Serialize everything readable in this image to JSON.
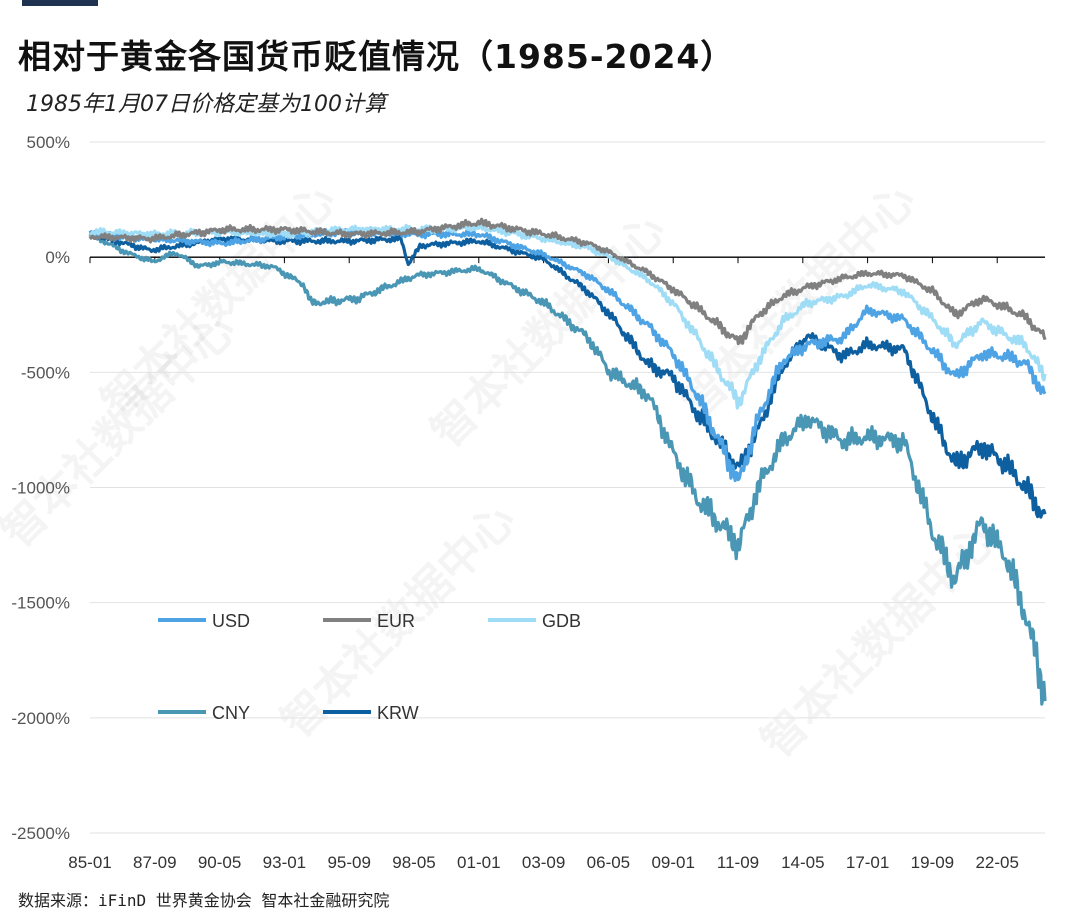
{
  "header": {
    "title": "相对于黄金各国货币贬值情况（1985-2024）",
    "subtitle": "1985年1月07日价格定基为100计算"
  },
  "source": "数据来源：iFinD 世界黄金协会 智本社金融研究院",
  "watermark": "智本社数据中心",
  "chart_data": {
    "type": "line",
    "title": "相对于黄金各国货币贬值情况（1985-2024）",
    "subtitle": "1985年1月07日价格定基为100计算",
    "ylabel": "",
    "xlabel": "",
    "y_unit": "%",
    "ylim": [
      -2500,
      500
    ],
    "yticks": [
      500,
      0,
      -500,
      -1000,
      -1500,
      -2000,
      -2500
    ],
    "ytick_labels": [
      "500%",
      "0%",
      "-500%",
      "-1000%",
      "-1500%",
      "-2000%",
      "-2500%"
    ],
    "xtick_labels": [
      "85-01",
      "87-09",
      "90-05",
      "93-01",
      "95-09",
      "98-05",
      "01-01",
      "03-09",
      "06-05",
      "09-01",
      "11-09",
      "14-05",
      "17-01",
      "19-09",
      "22-05"
    ],
    "x_range": [
      1985.0,
      2024.3
    ],
    "grid": true,
    "legend_position": "lower-left inside plot",
    "series": [
      {
        "name": "USD",
        "color": "#4ea3e5",
        "points": [
          [
            1985.0,
            100
          ],
          [
            1987.5,
            80
          ],
          [
            1990.5,
            60
          ],
          [
            1993.0,
            90
          ],
          [
            1995.7,
            110
          ],
          [
            1998.4,
            100
          ],
          [
            2001.0,
            100
          ],
          [
            2003.7,
            10
          ],
          [
            2005.5,
            -80
          ],
          [
            2006.4,
            -150
          ],
          [
            2008.0,
            -300
          ],
          [
            2009.0,
            -420
          ],
          [
            2010.0,
            -600
          ],
          [
            2011.7,
            -980
          ],
          [
            2012.5,
            -700
          ],
          [
            2013.5,
            -450
          ],
          [
            2014.5,
            -380
          ],
          [
            2016.0,
            -350
          ],
          [
            2017.0,
            -230
          ],
          [
            2018.5,
            -270
          ],
          [
            2019.7,
            -410
          ],
          [
            2020.6,
            -520
          ],
          [
            2021.7,
            -420
          ],
          [
            2022.7,
            -430
          ],
          [
            2023.5,
            -460
          ],
          [
            2024.3,
            -600
          ]
        ]
      },
      {
        "name": "EUR",
        "color": "#808080",
        "points": [
          [
            1985.0,
            90
          ],
          [
            1987.5,
            80
          ],
          [
            1990.5,
            120
          ],
          [
            1993.0,
            120
          ],
          [
            1995.7,
            100
          ],
          [
            1998.4,
            110
          ],
          [
            2001.0,
            150
          ],
          [
            2003.7,
            100
          ],
          [
            2005.5,
            60
          ],
          [
            2006.4,
            20
          ],
          [
            2008.0,
            -70
          ],
          [
            2009.0,
            -140
          ],
          [
            2010.0,
            -220
          ],
          [
            2011.7,
            -370
          ],
          [
            2012.5,
            -250
          ],
          [
            2013.5,
            -170
          ],
          [
            2014.5,
            -130
          ],
          [
            2016.0,
            -90
          ],
          [
            2017.0,
            -70
          ],
          [
            2018.5,
            -80
          ],
          [
            2019.7,
            -150
          ],
          [
            2020.6,
            -250
          ],
          [
            2021.7,
            -180
          ],
          [
            2022.7,
            -220
          ],
          [
            2023.5,
            -260
          ],
          [
            2024.3,
            -350
          ]
        ]
      },
      {
        "name": "GDB",
        "color": "#9fdcf5",
        "points": [
          [
            1985.0,
            110
          ],
          [
            1987.5,
            100
          ],
          [
            1990.5,
            110
          ],
          [
            1993.0,
            100
          ],
          [
            1995.7,
            120
          ],
          [
            1998.4,
            120
          ],
          [
            2001.0,
            130
          ],
          [
            2003.7,
            80
          ],
          [
            2005.5,
            40
          ],
          [
            2006.4,
            0
          ],
          [
            2008.0,
            -100
          ],
          [
            2009.0,
            -200
          ],
          [
            2010.0,
            -350
          ],
          [
            2011.7,
            -630
          ],
          [
            2012.5,
            -450
          ],
          [
            2013.5,
            -280
          ],
          [
            2014.5,
            -200
          ],
          [
            2016.0,
            -170
          ],
          [
            2017.0,
            -120
          ],
          [
            2018.5,
            -150
          ],
          [
            2019.7,
            -270
          ],
          [
            2020.6,
            -380
          ],
          [
            2021.7,
            -280
          ],
          [
            2022.7,
            -340
          ],
          [
            2023.5,
            -380
          ],
          [
            2024.3,
            -520
          ]
        ]
      },
      {
        "name": "CNY",
        "color": "#4a96b5",
        "points": [
          [
            1985.0,
            100
          ],
          [
            1986.5,
            20
          ],
          [
            1987.6,
            -20
          ],
          [
            1988.5,
            20
          ],
          [
            1989.5,
            -40
          ],
          [
            1990.5,
            -20
          ],
          [
            1992.5,
            -40
          ],
          [
            1993.8,
            -120
          ],
          [
            1994.1,
            -200
          ],
          [
            1996.0,
            -180
          ],
          [
            1998.4,
            -80
          ],
          [
            2001.0,
            -50
          ],
          [
            2003.7,
            -200
          ],
          [
            2005.5,
            -350
          ],
          [
            2006.4,
            -500
          ],
          [
            2008.0,
            -600
          ],
          [
            2009.0,
            -850
          ],
          [
            2010.0,
            -1050
          ],
          [
            2011.7,
            -1250
          ],
          [
            2012.5,
            -1000
          ],
          [
            2013.5,
            -800
          ],
          [
            2014.5,
            -700
          ],
          [
            2016.0,
            -800
          ],
          [
            2017.0,
            -780
          ],
          [
            2018.5,
            -800
          ],
          [
            2019.7,
            -1200
          ],
          [
            2020.6,
            -1400
          ],
          [
            2021.7,
            -1150
          ],
          [
            2022.7,
            -1300
          ],
          [
            2023.5,
            -1550
          ],
          [
            2024.3,
            -1900
          ]
        ]
      },
      {
        "name": "KRW",
        "color": "#0d5fa0",
        "points": [
          [
            1985.0,
            100
          ],
          [
            1987.5,
            30
          ],
          [
            1990.5,
            80
          ],
          [
            1993.0,
            70
          ],
          [
            1995.7,
            70
          ],
          [
            1997.8,
            80
          ],
          [
            1998.1,
            -30
          ],
          [
            1998.6,
            50
          ],
          [
            2001.0,
            70
          ],
          [
            2003.7,
            -10
          ],
          [
            2005.5,
            -150
          ],
          [
            2006.4,
            -250
          ],
          [
            2008.0,
            -470
          ],
          [
            2009.0,
            -520
          ],
          [
            2010.0,
            -680
          ],
          [
            2011.7,
            -920
          ],
          [
            2012.5,
            -750
          ],
          [
            2013.5,
            -480
          ],
          [
            2014.5,
            -340
          ],
          [
            2016.0,
            -430
          ],
          [
            2017.0,
            -380
          ],
          [
            2018.5,
            -400
          ],
          [
            2019.7,
            -700
          ],
          [
            2020.6,
            -900
          ],
          [
            2021.7,
            -820
          ],
          [
            2022.7,
            -900
          ],
          [
            2023.5,
            -1000
          ],
          [
            2024.3,
            -1130
          ]
        ]
      }
    ]
  }
}
